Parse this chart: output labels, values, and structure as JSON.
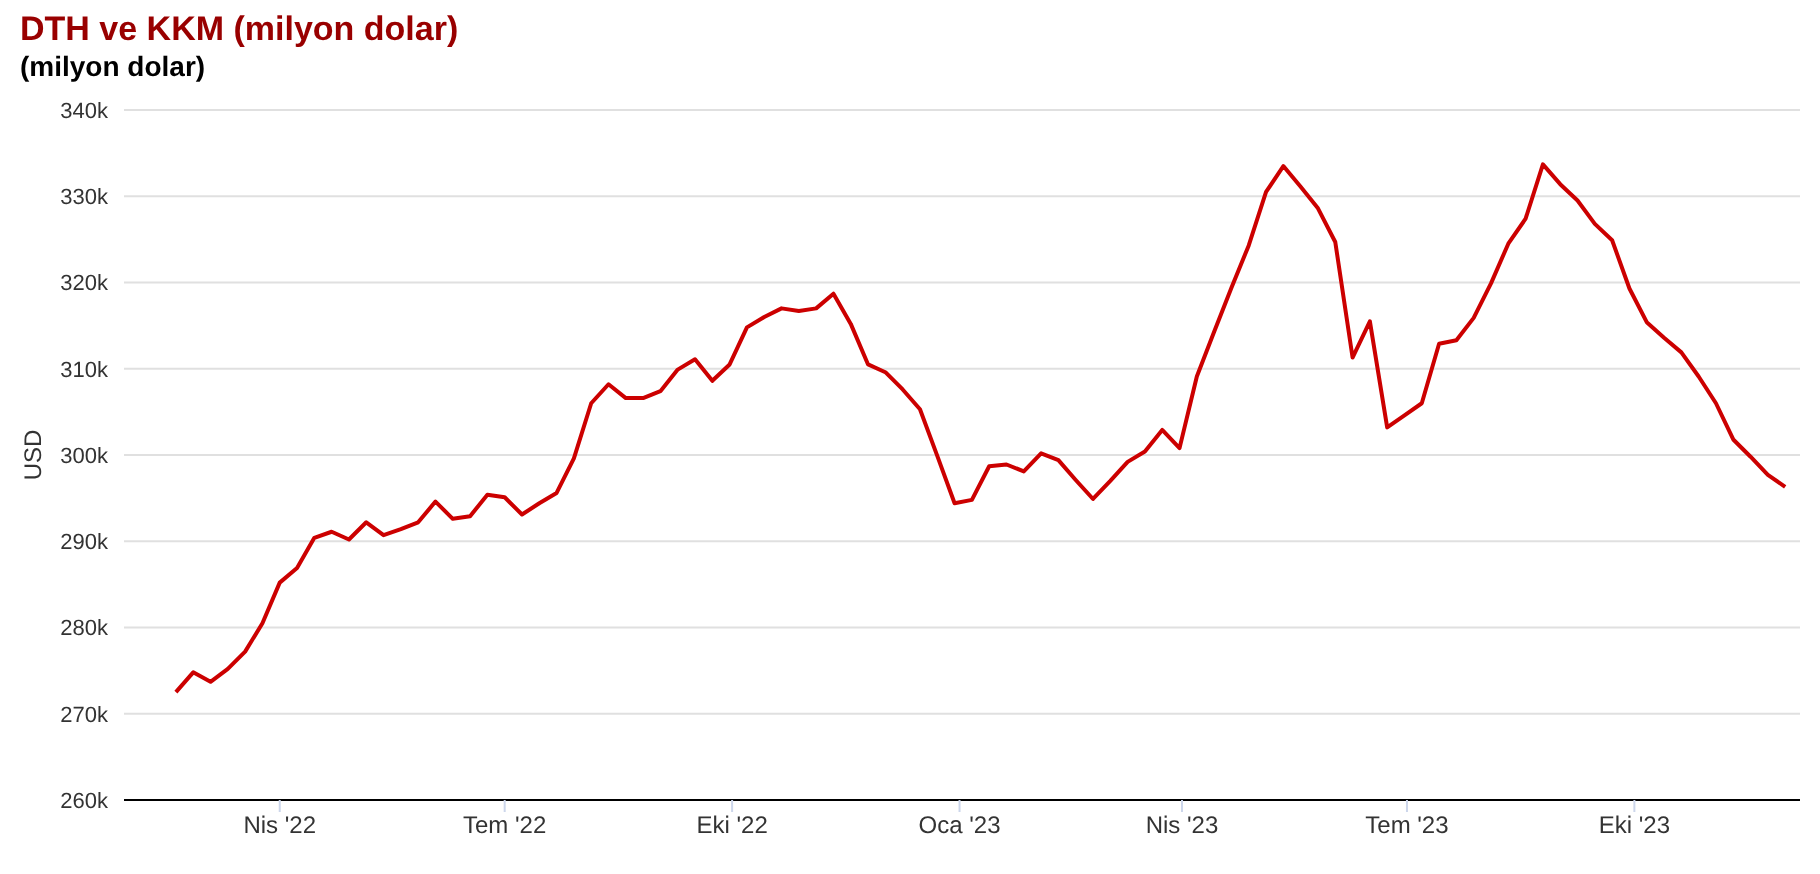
{
  "chart_data": {
    "type": "line",
    "title": "DTH ve KKM (milyon dolar)",
    "subtitle": "(milyon dolar)",
    "ylabel": "USD",
    "x": [
      "2022-02-18",
      "2022-02-25",
      "2022-03-04",
      "2022-03-11",
      "2022-03-18",
      "2022-03-25",
      "2022-04-01",
      "2022-04-08",
      "2022-04-15",
      "2022-04-22",
      "2022-04-29",
      "2022-05-06",
      "2022-05-13",
      "2022-05-20",
      "2022-05-27",
      "2022-06-03",
      "2022-06-10",
      "2022-06-17",
      "2022-06-24",
      "2022-07-01",
      "2022-07-08",
      "2022-07-15",
      "2022-07-22",
      "2022-07-29",
      "2022-08-05",
      "2022-08-12",
      "2022-08-19",
      "2022-08-26",
      "2022-09-02",
      "2022-09-09",
      "2022-09-16",
      "2022-09-23",
      "2022-09-30",
      "2022-10-07",
      "2022-10-14",
      "2022-10-21",
      "2022-10-28",
      "2022-11-04",
      "2022-11-11",
      "2022-11-18",
      "2022-11-25",
      "2022-12-02",
      "2022-12-09",
      "2022-12-16",
      "2022-12-23",
      "2022-12-30",
      "2023-01-06",
      "2023-01-13",
      "2023-01-20",
      "2023-01-27",
      "2023-02-03",
      "2023-02-10",
      "2023-02-17",
      "2023-02-24",
      "2023-03-03",
      "2023-03-10",
      "2023-03-17",
      "2023-03-24",
      "2023-03-31",
      "2023-04-07",
      "2023-04-14",
      "2023-04-21",
      "2023-04-28",
      "2023-05-05",
      "2023-05-12",
      "2023-05-19",
      "2023-05-26",
      "2023-06-02",
      "2023-06-09",
      "2023-06-16",
      "2023-06-23",
      "2023-06-30",
      "2023-07-07",
      "2023-07-14",
      "2023-07-21",
      "2023-07-28",
      "2023-08-04",
      "2023-08-11",
      "2023-08-18",
      "2023-08-25",
      "2023-09-01",
      "2023-09-08",
      "2023-09-15",
      "2023-09-22",
      "2023-09-29",
      "2023-10-06",
      "2023-10-13",
      "2023-10-20",
      "2023-10-27",
      "2023-11-03",
      "2023-11-10",
      "2023-11-17",
      "2023-11-24",
      "2023-12-01"
    ],
    "series": [
      {
        "color": "#cc0000",
        "values": [
          272500,
          274800,
          273700,
          275200,
          277200,
          280500,
          285200,
          286900,
          290400,
          291100,
          290200,
          292200,
          290700,
          291400,
          292200,
          294600,
          292600,
          292900,
          295400,
          295100,
          293100,
          294400,
          295600,
          299600,
          306000,
          308200,
          306600,
          306600,
          307400,
          309900,
          311100,
          308600,
          310500,
          314800,
          316000,
          317000,
          316700,
          317000,
          318700,
          315200,
          310500,
          309600,
          307600,
          305300,
          299900,
          294400,
          294800,
          298700,
          298900,
          298100,
          300200,
          299400,
          297100,
          294900,
          297000,
          299200,
          300400,
          302900,
          300800,
          309100,
          314300,
          319400,
          324300,
          330500,
          333500,
          331100,
          328600,
          324700,
          311300,
          315500,
          303200,
          304600,
          306000,
          312900,
          313300,
          315900,
          319900,
          324500,
          327400,
          333700,
          331400,
          329500,
          326800,
          324900,
          319300,
          315400,
          313600,
          311900,
          309100,
          306000,
          301800,
          299800,
          297700,
          296300
        ]
      }
    ],
    "xlim": [
      "2022-01-28",
      "2023-12-07"
    ],
    "xticks": [
      {
        "value": "2022-04-01",
        "label": "Nis '22"
      },
      {
        "value": "2022-07-01",
        "label": "Tem '22"
      },
      {
        "value": "2022-10-01",
        "label": "Eki '22"
      },
      {
        "value": "2023-01-01",
        "label": "Oca '23"
      },
      {
        "value": "2023-04-01",
        "label": "Nis '23"
      },
      {
        "value": "2023-07-01",
        "label": "Tem '23"
      },
      {
        "value": "2023-10-01",
        "label": "Eki '23"
      }
    ],
    "ylim": [
      260000,
      340000
    ],
    "yticks": [
      {
        "value": 260000,
        "label": "260k"
      },
      {
        "value": 270000,
        "label": "270k"
      },
      {
        "value": 280000,
        "label": "280k"
      },
      {
        "value": 290000,
        "label": "290k"
      },
      {
        "value": 300000,
        "label": "300k"
      },
      {
        "value": 310000,
        "label": "310k"
      },
      {
        "value": 320000,
        "label": "320k"
      },
      {
        "value": 330000,
        "label": "330k"
      },
      {
        "value": 340000,
        "label": "340k"
      }
    ],
    "grid": "y",
    "marker": "none",
    "line_style": "solid"
  }
}
